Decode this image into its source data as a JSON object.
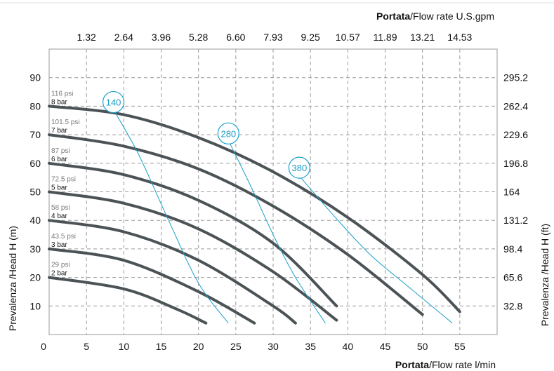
{
  "chart_data": {
    "type": "line",
    "x_bottom": {
      "title_bold": "Portata",
      "title_rest": "/Flow rate  l/min",
      "ticks": [
        0,
        5,
        10,
        15,
        20,
        25,
        30,
        35,
        40,
        45,
        50,
        55
      ],
      "range": [
        0,
        60
      ]
    },
    "x_top": {
      "title_bold": "Portata",
      "title_rest": "/Flow rate U.S.gpm",
      "ticks": [
        "1.32",
        "2.64",
        "3.96",
        "5.28",
        "6.60",
        "7.93",
        "9.25",
        "10.57",
        "11.89",
        "13.21",
        "14.53"
      ]
    },
    "y_left": {
      "title": "Prevalenza /Head H (m)",
      "ticks": [
        10,
        20,
        30,
        40,
        50,
        60,
        70,
        80,
        90
      ],
      "range": [
        0,
        100
      ]
    },
    "y_right": {
      "title": "Prevalenza /Head H (ft)",
      "ticks": [
        "32.8",
        "65.6",
        "98.4",
        "131.2",
        "164",
        "196.8",
        "229.6",
        "262.4",
        "295.2"
      ]
    },
    "grid": true,
    "series": [
      {
        "name": "8 bar",
        "psi": "116 psi",
        "x": [
          0,
          10,
          20,
          30,
          40,
          50,
          55
        ],
        "y": [
          80,
          77,
          69,
          57,
          41,
          21,
          8
        ]
      },
      {
        "name": "7 bar",
        "psi": "101.5 psi",
        "x": [
          0,
          10,
          20,
          30,
          40,
          50
        ],
        "y": [
          70,
          66,
          58,
          45,
          28,
          7
        ]
      },
      {
        "name": "6 bar",
        "psi": "87 psi",
        "x": [
          0,
          10,
          20,
          30,
          38.5
        ],
        "y": [
          60,
          56,
          47,
          32,
          10
        ]
      },
      {
        "name": "5 bar",
        "psi": "72.5 psi",
        "x": [
          0,
          10,
          20,
          30,
          38.5
        ],
        "y": [
          50,
          46,
          37,
          22,
          5
        ]
      },
      {
        "name": "4 bar",
        "psi": "58 psi",
        "x": [
          0,
          10,
          20,
          30,
          33
        ],
        "y": [
          40,
          36,
          26,
          10,
          4
        ]
      },
      {
        "name": "3 bar",
        "psi": "43.5 psi",
        "x": [
          0,
          10,
          20,
          27.5
        ],
        "y": [
          30,
          26,
          15,
          4
        ]
      },
      {
        "name": "2 bar",
        "psi": "29 psi",
        "x": [
          0,
          10,
          17,
          21
        ],
        "y": [
          20,
          16,
          9,
          4
        ]
      }
    ],
    "flow_lines": [
      {
        "label": "140",
        "x": [
          8.8,
          12,
          16,
          20,
          24
        ],
        "y": [
          78,
          63,
          40,
          18,
          4
        ]
      },
      {
        "label": "280",
        "x": [
          24.2,
          27,
          30,
          33,
          37
        ],
        "y": [
          67,
          52,
          35,
          20,
          4
        ]
      },
      {
        "label": "380",
        "x": [
          33.7,
          38,
          43,
          48,
          54
        ],
        "y": [
          55,
          42,
          28,
          17,
          4
        ]
      }
    ],
    "colors": {
      "curve": "#4c5356",
      "flow": "#1aa0c8",
      "grid": "#9a9a9a"
    }
  }
}
